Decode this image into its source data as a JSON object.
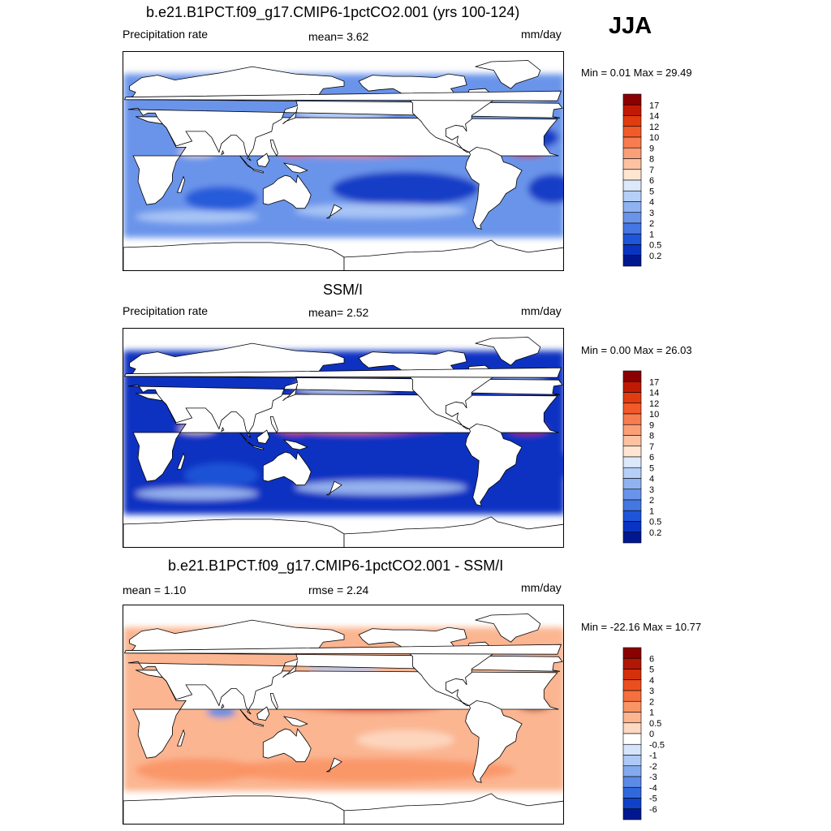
{
  "season": "JJA",
  "panels": [
    {
      "title": "b.e21.B1PCT.f09_g17.CMIP6-1pctCO2.001 (yrs 100-124)",
      "left_label": "Precipitation rate",
      "center_label": "mean=   3.62",
      "units": "mm/day",
      "minmax": "Min =   0.01 Max =  29.49"
    },
    {
      "title": "SSM/I",
      "left_label": "Precipitation rate",
      "center_label": "mean=   2.52",
      "units": "mm/day",
      "minmax": "Min =   0.00 Max =  26.03"
    },
    {
      "title": "b.e21.B1PCT.f09_g17.CMIP6-1pctCO2.001 - SSM/I",
      "left_label": "mean =   1.10",
      "center_label": "rmse =   2.24",
      "units": "mm/day",
      "minmax": "Min = -22.16 Max =  10.77"
    }
  ],
  "chart_data": [
    {
      "type": "heatmap",
      "title": "b.e21.B1PCT.f09_g17.CMIP6-1pctCO2.001 (yrs 100-124)",
      "variable": "Precipitation rate",
      "units": "mm/day",
      "mean": 3.62,
      "min": 0.01,
      "max": 29.49,
      "colorbar_levels": [
        "17",
        "14",
        "12",
        "10",
        "9",
        "8",
        "7",
        "6",
        "5",
        "4",
        "3",
        "2",
        "1",
        "0.5",
        "0.2"
      ],
      "colorbar_colors": [
        "#8b0000",
        "#c01a05",
        "#e03c10",
        "#f25a2a",
        "#f77c4f",
        "#fa9f78",
        "#fcc2a2",
        "#ffe6d2",
        "#dce9fb",
        "#b6cff7",
        "#8fb2f1",
        "#6a94ea",
        "#4577e3",
        "#1f55d8",
        "#0a33c2",
        "#00188f"
      ],
      "grid": false
    },
    {
      "type": "heatmap",
      "title": "SSM/I",
      "variable": "Precipitation rate",
      "units": "mm/day",
      "mean": 2.52,
      "min": 0.0,
      "max": 26.03,
      "colorbar_levels": [
        "17",
        "14",
        "12",
        "10",
        "9",
        "8",
        "7",
        "6",
        "5",
        "4",
        "3",
        "2",
        "1",
        "0.5",
        "0.2"
      ],
      "colorbar_colors": [
        "#8b0000",
        "#c01a05",
        "#e03c10",
        "#f25a2a",
        "#f77c4f",
        "#fa9f78",
        "#fcc2a2",
        "#ffe6d2",
        "#dce9fb",
        "#b6cff7",
        "#8fb2f1",
        "#6a94ea",
        "#4577e3",
        "#1f55d8",
        "#0a33c2",
        "#00188f"
      ],
      "grid": false
    },
    {
      "type": "heatmap",
      "title": "b.e21.B1PCT.f09_g17.CMIP6-1pctCO2.001 - SSM/I",
      "units": "mm/day",
      "mean": 1.1,
      "rmse": 2.24,
      "min": -22.16,
      "max": 10.77,
      "colorbar_levels": [
        "6",
        "5",
        "4",
        "3",
        "2",
        "1",
        "0.5",
        "0",
        "-0.5",
        "-1",
        "-2",
        "-3",
        "-4",
        "-5",
        "-6"
      ],
      "colorbar_colors": [
        "#8b0000",
        "#b01705",
        "#d3300c",
        "#ec4f1f",
        "#f6703f",
        "#f99465",
        "#fbb591",
        "#fdd8c2",
        "#ffffff",
        "#d6e4fb",
        "#aec9f6",
        "#84aaee",
        "#5b8be6",
        "#3168dc",
        "#0f42c9",
        "#00188f"
      ],
      "grid": false
    }
  ]
}
